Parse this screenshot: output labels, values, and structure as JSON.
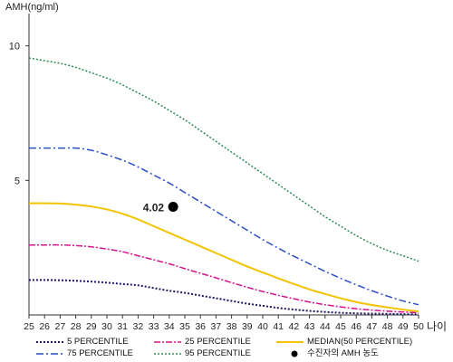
{
  "chart_data": {
    "type": "line",
    "ylabel": "AMH(ng/ml)",
    "xlabel": "나이",
    "x": [
      25,
      26,
      27,
      28,
      29,
      30,
      31,
      32,
      33,
      34,
      35,
      36,
      37,
      38,
      39,
      40,
      41,
      42,
      43,
      44,
      45,
      46,
      47,
      48,
      49,
      50
    ],
    "xlim": [
      25,
      50
    ],
    "ylim": [
      0,
      11.2
    ],
    "yticks": [
      5,
      10
    ],
    "series": [
      {
        "name": "5 PERCENTILE",
        "color": "#1a1a66",
        "dash": "2,2",
        "width": 2,
        "values": [
          1.3,
          1.3,
          1.29,
          1.27,
          1.24,
          1.2,
          1.15,
          1.1,
          1.0,
          0.9,
          0.82,
          0.72,
          0.62,
          0.52,
          0.42,
          0.34,
          0.26,
          0.2,
          0.15,
          0.11,
          0.08,
          0.06,
          0.05,
          0.04,
          0.03,
          0.02
        ]
      },
      {
        "name": "25 PERCENTILE",
        "color": "#d4148c",
        "dash": "7,2,2,2",
        "width": 1.5,
        "values": [
          2.6,
          2.6,
          2.6,
          2.58,
          2.53,
          2.45,
          2.35,
          2.2,
          2.05,
          1.9,
          1.72,
          1.55,
          1.38,
          1.2,
          1.03,
          0.87,
          0.73,
          0.6,
          0.48,
          0.38,
          0.3,
          0.23,
          0.18,
          0.14,
          0.11,
          0.08
        ]
      },
      {
        "name": "MEDIAN(50 PERCENTILE)",
        "color": "#f2c300",
        "dash": "",
        "width": 2,
        "values": [
          4.15,
          4.15,
          4.14,
          4.1,
          4.03,
          3.92,
          3.76,
          3.55,
          3.3,
          3.05,
          2.8,
          2.55,
          2.3,
          2.05,
          1.8,
          1.58,
          1.36,
          1.15,
          0.95,
          0.78,
          0.62,
          0.48,
          0.37,
          0.28,
          0.2,
          0.13
        ]
      },
      {
        "name": "75 PERCENTILE",
        "color": "#2b4fc4",
        "dash": "8,3,2,3",
        "width": 1.5,
        "values": [
          6.2,
          6.2,
          6.2,
          6.2,
          6.12,
          5.95,
          5.75,
          5.5,
          5.2,
          4.9,
          4.55,
          4.2,
          3.85,
          3.5,
          3.15,
          2.8,
          2.48,
          2.18,
          1.9,
          1.62,
          1.36,
          1.12,
          0.9,
          0.7,
          0.52,
          0.38
        ]
      },
      {
        "name": "95 PERCENTILE",
        "color": "#2e8b57",
        "dash": "2,2",
        "width": 1.5,
        "values": [
          9.55,
          9.45,
          9.35,
          9.2,
          9.0,
          8.8,
          8.55,
          8.25,
          7.95,
          7.6,
          7.25,
          6.85,
          6.45,
          6.05,
          5.65,
          5.25,
          4.85,
          4.45,
          4.05,
          3.65,
          3.3,
          2.95,
          2.65,
          2.4,
          2.2,
          2.0
        ]
      }
    ],
    "marker": {
      "name": "수진자의 AMH 농도",
      "x": 34.25,
      "y": 4.02,
      "label": "4.02",
      "color": "#000000"
    },
    "legend": [
      {
        "label": "5 PERCENTILE",
        "series": 0
      },
      {
        "label": "25 PERCENTILE",
        "series": 1
      },
      {
        "label": "MEDIAN(50 PERCENTILE)",
        "series": 2
      },
      {
        "label": "75 PERCENTILE",
        "series": 3
      },
      {
        "label": "95 PERCENTILE",
        "series": 4
      },
      {
        "label": "수진자의 AMH 농도",
        "series": -1
      }
    ],
    "legend_position": "bottom",
    "grid": false
  }
}
